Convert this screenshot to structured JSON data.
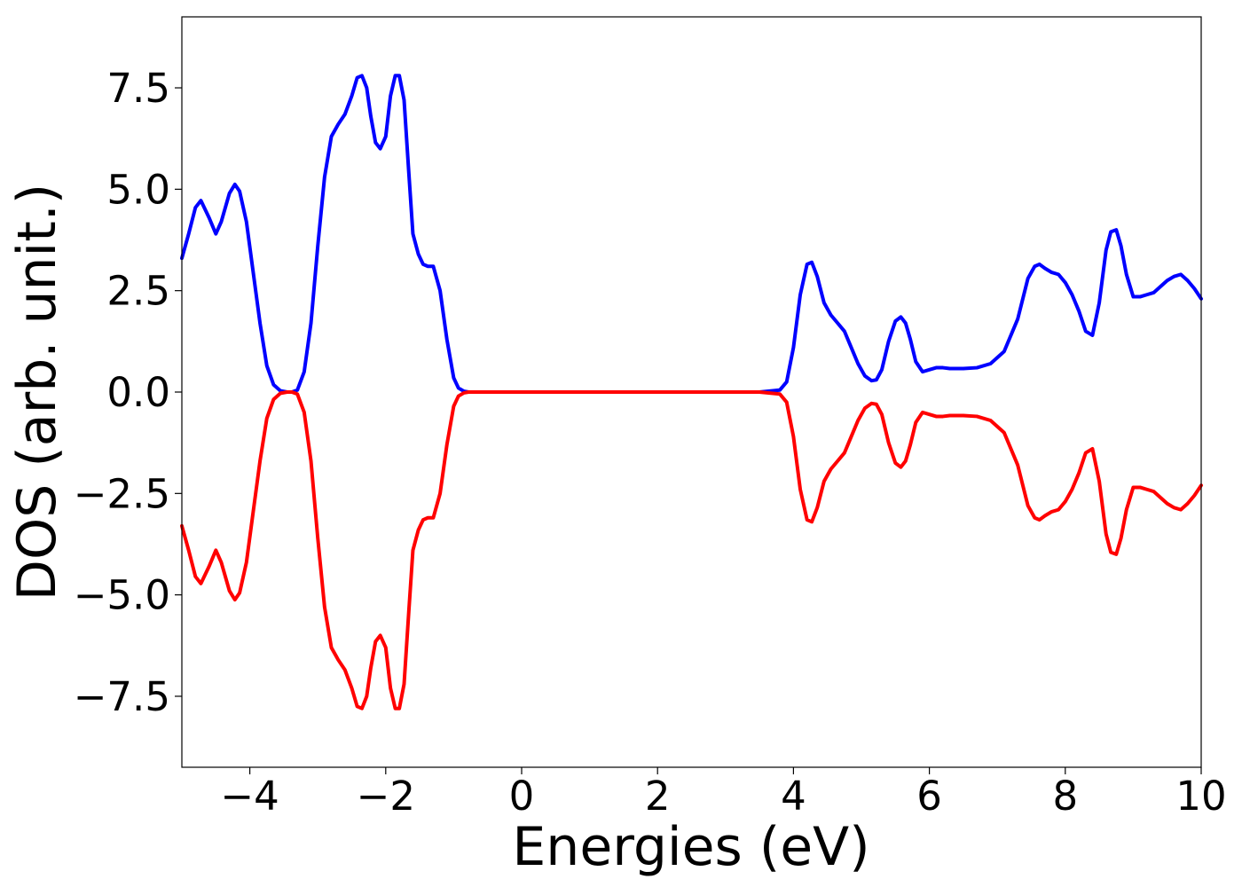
{
  "chart_data": {
    "type": "line",
    "title": "",
    "xlabel": "Energies (eV)",
    "ylabel": "DOS (arb. unit.)",
    "xlim": [
      -5,
      10
    ],
    "ylim": [
      -9.25,
      9.25
    ],
    "xticks": [
      -4,
      -2,
      0,
      2,
      4,
      6,
      8,
      10
    ],
    "xtick_labels": [
      "−4",
      "−2",
      "0",
      "2",
      "4",
      "6",
      "8",
      "10"
    ],
    "yticks": [
      -7.5,
      -5.0,
      -2.5,
      0.0,
      2.5,
      5.0,
      7.5
    ],
    "ytick_labels": [
      "−7.5",
      "−5.0",
      "−2.5",
      "0.0",
      "2.5",
      "5.0",
      "7.5"
    ],
    "grid": false,
    "legend": "none",
    "series": [
      {
        "color": "#0000ff",
        "x": [
          -5.0,
          -4.9,
          -4.8,
          -4.72,
          -4.6,
          -4.5,
          -4.42,
          -4.3,
          -4.22,
          -4.15,
          -4.05,
          -3.95,
          -3.85,
          -3.75,
          -3.65,
          -3.55,
          -3.45,
          -3.38,
          -3.3,
          -3.2,
          -3.1,
          -3.0,
          -2.9,
          -2.8,
          -2.7,
          -2.6,
          -2.5,
          -2.42,
          -2.35,
          -2.28,
          -2.22,
          -2.15,
          -2.08,
          -2.0,
          -1.93,
          -1.86,
          -1.8,
          -1.73,
          -1.66,
          -1.6,
          -1.52,
          -1.45,
          -1.38,
          -1.3,
          -1.2,
          -1.1,
          -1.0,
          -0.93,
          -0.85,
          -0.78,
          -0.7,
          -0.6,
          -0.5,
          0.0,
          1.0,
          2.0,
          3.0,
          3.5,
          3.8,
          3.9,
          4.0,
          4.1,
          4.2,
          4.27,
          4.35,
          4.45,
          4.55,
          4.65,
          4.75,
          4.85,
          4.95,
          5.05,
          5.15,
          5.22,
          5.3,
          5.4,
          5.5,
          5.58,
          5.65,
          5.72,
          5.8,
          5.9,
          6.0,
          6.1,
          6.2,
          6.3,
          6.5,
          6.7,
          6.9,
          7.1,
          7.3,
          7.45,
          7.55,
          7.62,
          7.7,
          7.8,
          7.9,
          8.0,
          8.1,
          8.2,
          8.3,
          8.4,
          8.5,
          8.6,
          8.67,
          8.75,
          8.82,
          8.9,
          9.0,
          9.1,
          9.2,
          9.3,
          9.4,
          9.5,
          9.6,
          9.7,
          9.8,
          9.9,
          10.0
        ],
        "y": [
          3.3,
          3.9,
          4.55,
          4.72,
          4.3,
          3.9,
          4.2,
          4.9,
          5.12,
          4.95,
          4.2,
          2.95,
          1.7,
          0.65,
          0.18,
          0.03,
          0.0,
          0.0,
          0.05,
          0.5,
          1.7,
          3.6,
          5.3,
          6.3,
          6.6,
          6.85,
          7.3,
          7.75,
          7.8,
          7.5,
          6.8,
          6.15,
          6.0,
          6.3,
          7.3,
          7.8,
          7.8,
          7.2,
          5.4,
          3.9,
          3.4,
          3.15,
          3.1,
          3.1,
          2.5,
          1.3,
          0.35,
          0.1,
          0.02,
          0.0,
          0.0,
          0.0,
          0.0,
          0.0,
          0.0,
          0.0,
          0.0,
          0.0,
          0.05,
          0.25,
          1.1,
          2.4,
          3.15,
          3.2,
          2.85,
          2.2,
          1.9,
          1.7,
          1.5,
          1.1,
          0.7,
          0.4,
          0.28,
          0.3,
          0.55,
          1.25,
          1.75,
          1.85,
          1.7,
          1.3,
          0.75,
          0.5,
          0.55,
          0.6,
          0.6,
          0.58,
          0.58,
          0.6,
          0.7,
          1.0,
          1.8,
          2.8,
          3.1,
          3.15,
          3.05,
          2.95,
          2.9,
          2.7,
          2.4,
          2.0,
          1.5,
          1.4,
          2.2,
          3.5,
          3.95,
          4.0,
          3.6,
          2.9,
          2.35,
          2.35,
          2.4,
          2.45,
          2.6,
          2.75,
          2.85,
          2.9,
          2.75,
          2.55,
          2.3
        ]
      },
      {
        "color": "#ff0000",
        "x": [
          -5.0,
          -4.9,
          -4.8,
          -4.72,
          -4.6,
          -4.5,
          -4.42,
          -4.3,
          -4.22,
          -4.15,
          -4.05,
          -3.95,
          -3.85,
          -3.75,
          -3.65,
          -3.55,
          -3.45,
          -3.38,
          -3.3,
          -3.2,
          -3.1,
          -3.0,
          -2.9,
          -2.8,
          -2.7,
          -2.6,
          -2.5,
          -2.42,
          -2.35,
          -2.28,
          -2.22,
          -2.15,
          -2.08,
          -2.0,
          -1.93,
          -1.86,
          -1.8,
          -1.73,
          -1.66,
          -1.6,
          -1.52,
          -1.45,
          -1.38,
          -1.3,
          -1.2,
          -1.1,
          -1.0,
          -0.93,
          -0.85,
          -0.78,
          -0.7,
          -0.6,
          -0.5,
          0.0,
          1.0,
          2.0,
          3.0,
          3.5,
          3.8,
          3.9,
          4.0,
          4.1,
          4.2,
          4.27,
          4.35,
          4.45,
          4.55,
          4.65,
          4.75,
          4.85,
          4.95,
          5.05,
          5.15,
          5.22,
          5.3,
          5.4,
          5.5,
          5.58,
          5.65,
          5.72,
          5.8,
          5.9,
          6.0,
          6.1,
          6.2,
          6.3,
          6.5,
          6.7,
          6.9,
          7.1,
          7.3,
          7.45,
          7.55,
          7.62,
          7.7,
          7.8,
          7.9,
          8.0,
          8.1,
          8.2,
          8.3,
          8.4,
          8.5,
          8.6,
          8.67,
          8.75,
          8.82,
          8.9,
          9.0,
          9.1,
          9.2,
          9.3,
          9.4,
          9.5,
          9.6,
          9.7,
          9.8,
          9.9,
          10.0
        ],
        "y": [
          -3.3,
          -3.9,
          -4.55,
          -4.72,
          -4.3,
          -3.9,
          -4.2,
          -4.9,
          -5.12,
          -4.95,
          -4.2,
          -2.95,
          -1.7,
          -0.65,
          -0.18,
          -0.03,
          0.0,
          0.0,
          -0.05,
          -0.5,
          -1.7,
          -3.6,
          -5.3,
          -6.3,
          -6.6,
          -6.85,
          -7.3,
          -7.75,
          -7.8,
          -7.5,
          -6.8,
          -6.15,
          -6.0,
          -6.3,
          -7.3,
          -7.8,
          -7.8,
          -7.2,
          -5.4,
          -3.9,
          -3.4,
          -3.15,
          -3.1,
          -3.1,
          -2.5,
          -1.3,
          -0.35,
          -0.1,
          -0.02,
          0.0,
          0.0,
          0.0,
          0.0,
          0.0,
          0.0,
          0.0,
          0.0,
          0.0,
          -0.05,
          -0.25,
          -1.1,
          -2.4,
          -3.15,
          -3.2,
          -2.85,
          -2.2,
          -1.9,
          -1.7,
          -1.5,
          -1.1,
          -0.7,
          -0.4,
          -0.28,
          -0.3,
          -0.55,
          -1.25,
          -1.75,
          -1.85,
          -1.7,
          -1.3,
          -0.75,
          -0.5,
          -0.55,
          -0.6,
          -0.6,
          -0.58,
          -0.58,
          -0.6,
          -0.7,
          -1.0,
          -1.8,
          -2.8,
          -3.1,
          -3.15,
          -3.05,
          -2.95,
          -2.9,
          -2.7,
          -2.4,
          -2.0,
          -1.5,
          -1.4,
          -2.2,
          -3.5,
          -3.95,
          -4.0,
          -3.6,
          -2.9,
          -2.35,
          -2.35,
          -2.4,
          -2.45,
          -2.6,
          -2.75,
          -2.85,
          -2.9,
          -2.75,
          -2.55,
          -2.3
        ]
      }
    ]
  }
}
